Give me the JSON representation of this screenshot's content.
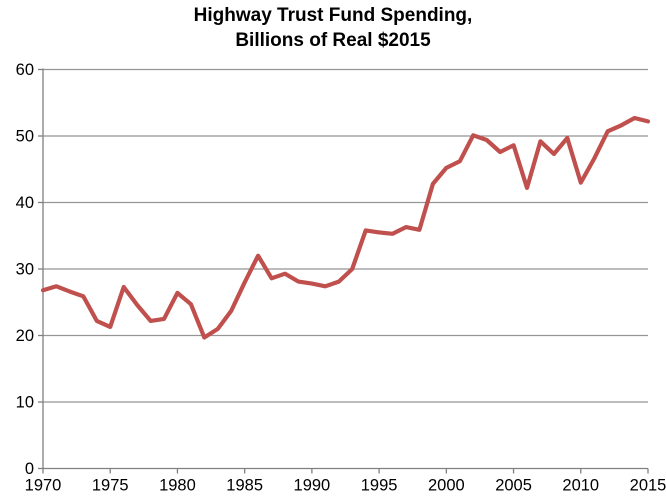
{
  "header": {
    "title_line1": "Highway Trust Fund Spending,",
    "title_line2": "Billions of Real $2015"
  },
  "chart_data": {
    "type": "line",
    "title": "Highway Trust Fund Spending, Billions of Real $2015",
    "xlabel": "",
    "ylabel": "",
    "x": [
      1970,
      1971,
      1972,
      1973,
      1974,
      1975,
      1976,
      1977,
      1978,
      1979,
      1980,
      1981,
      1982,
      1983,
      1984,
      1985,
      1986,
      1987,
      1988,
      1989,
      1990,
      1991,
      1992,
      1993,
      1994,
      1995,
      1996,
      1997,
      1998,
      1999,
      2000,
      2001,
      2002,
      2003,
      2004,
      2005,
      2006,
      2007,
      2008,
      2009,
      2010,
      2011,
      2012,
      2013,
      2014,
      2015
    ],
    "values": [
      26.8,
      27.4,
      26.6,
      25.9,
      22.2,
      21.3,
      27.3,
      24.6,
      22.2,
      22.5,
      26.4,
      24.7,
      19.7,
      21.0,
      23.7,
      28.0,
      32.0,
      28.6,
      29.3,
      28.1,
      27.8,
      27.4,
      28.1,
      30.0,
      35.8,
      35.5,
      35.3,
      36.3,
      35.9,
      42.8,
      45.2,
      46.2,
      50.1,
      49.4,
      47.6,
      48.6,
      42.2,
      49.2,
      47.3,
      49.7,
      43.0,
      46.6,
      50.7,
      51.6,
      52.7,
      52.2
    ],
    "ylim": [
      0,
      60
    ],
    "y_ticks": [
      0,
      10,
      20,
      30,
      40,
      50,
      60
    ],
    "x_ticks": [
      1970,
      1975,
      1980,
      1985,
      1990,
      1995,
      2000,
      2005,
      2010,
      2015
    ],
    "grid": "horizontal",
    "legend": "none",
    "line_color": "#C0504D",
    "gridline_color": "#959595",
    "axis_color": "#808080",
    "tick_label_color": "#000000",
    "background": "#FFFFFF"
  }
}
